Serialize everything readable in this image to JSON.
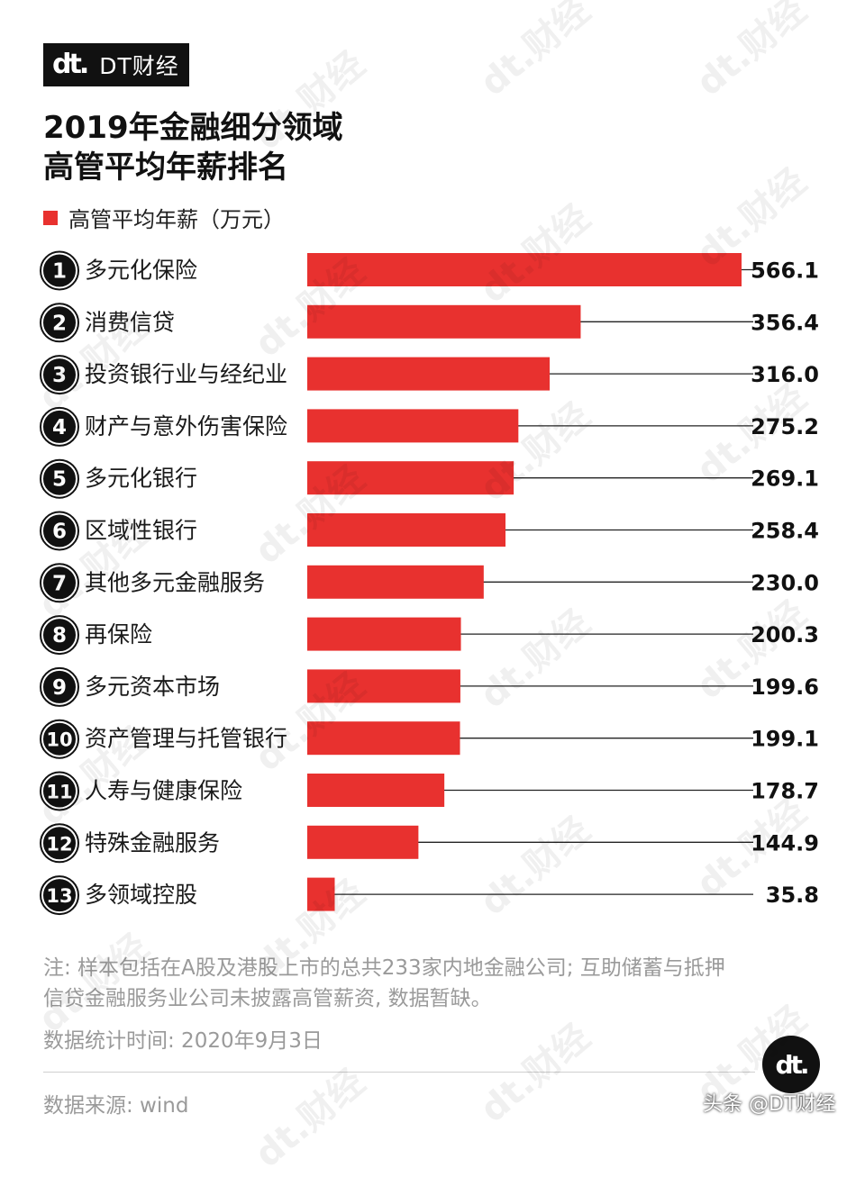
{
  "brand": {
    "logo_text": "dt.",
    "name": "DT财经"
  },
  "title_line1": "2019年金融细分领域",
  "title_line2": "高管平均年薪排名",
  "colors": {
    "bar": "#e8312f",
    "text": "#1a1a1a",
    "muted": "#9a9a9a"
  },
  "chart_data": {
    "type": "bar",
    "orientation": "horizontal",
    "categories": [
      "多元化保险",
      "消费信贷",
      "投资银行业与经纪业",
      "财产与意外伤害保险",
      "多元化银行",
      "区域性银行",
      "其他多元金融服务",
      "再保险",
      "多元资本市场",
      "资产管理与托管银行",
      "人寿与健康保险",
      "特殊金融服务",
      "多领域控股"
    ],
    "ranks": [
      "1",
      "2",
      "3",
      "4",
      "5",
      "6",
      "7",
      "8",
      "9",
      "10",
      "11",
      "12",
      "13"
    ],
    "series": [
      {
        "name": "高管平均年薪（万元）",
        "values": [
          566.1,
          356.4,
          316.0,
          275.2,
          269.1,
          258.4,
          230.0,
          200.3,
          199.6,
          199.1,
          178.7,
          144.9,
          35.8
        ]
      }
    ],
    "value_labels": [
      "566.1",
      "356.4",
      "316.0",
      "275.2",
      "269.1",
      "258.4",
      "230.0",
      "200.3",
      "199.6",
      "199.1",
      "178.7",
      "144.9",
      "35.8"
    ],
    "xlim": [
      0,
      566.1
    ],
    "grid": false,
    "legend_position": "top-left"
  },
  "notes": {
    "line1": "注: 样本包括在A股及港股上市的总共233家内地金融公司; 互助储蓄与抵押",
    "line2": "信贷金融服务业公司未披露高管薪资, 数据暂缺。",
    "date": "数据统计时间: 2020年9月3日",
    "source": "数据来源: wind"
  },
  "corner_logo": "dt.",
  "platform_watermark": "头条 @DT财经",
  "watermark_text": "dt.财经"
}
